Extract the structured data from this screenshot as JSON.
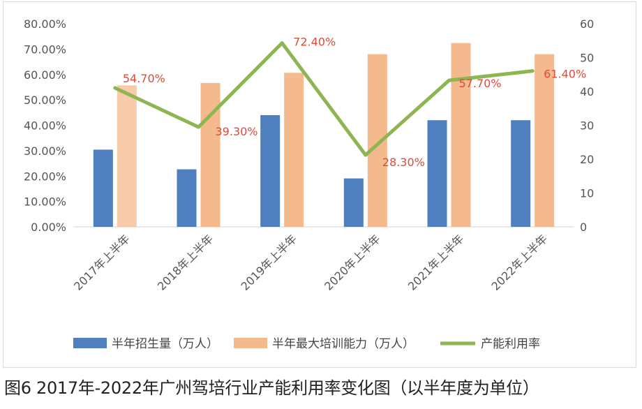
{
  "caption": "图6 2017年-2022年广州驾培行业产能利用率变化图（以半年度为单位）",
  "chart_data": {
    "type": "bar+line",
    "categories": [
      "2017年上半年",
      "2018年上半年",
      "2019年上半年",
      "2020年上半年",
      "2021年上半年",
      "2022年上半年"
    ],
    "series": [
      {
        "name": "半年招生量（万人）",
        "type": "bar",
        "axis": "right",
        "color": "#4f7fbf",
        "values": [
          22.8,
          17,
          33,
          14.3,
          31.5,
          31.5
        ]
      },
      {
        "name": "半年最大培训能力（万人）",
        "type": "bar",
        "axis": "right",
        "color": "#f5b98e",
        "values": [
          41.8,
          42.5,
          45.5,
          51,
          54.3,
          51
        ]
      },
      {
        "name": "产能利用率",
        "type": "line",
        "axis": "left",
        "color": "#8db552",
        "values": [
          54.7,
          39.3,
          72.4,
          28.3,
          57.7,
          61.4
        ],
        "labels": [
          "54.70%",
          "39.30%",
          "72.40%",
          "28.30%",
          "57.70%",
          "61.40%"
        ]
      }
    ],
    "y_left": {
      "min": 0,
      "max": 80,
      "step": 10,
      "tick_labels": [
        "0.00%",
        "10.00%",
        "20.00%",
        "30.00%",
        "40.00%",
        "50.00%",
        "60.00%",
        "70.00%",
        "80.00%"
      ]
    },
    "y_right": {
      "min": 0,
      "max": 60,
      "step": 10,
      "tick_labels": [
        "0",
        "10",
        "20",
        "30",
        "40",
        "50",
        "60"
      ]
    },
    "grid": false,
    "legend": "bottom"
  }
}
